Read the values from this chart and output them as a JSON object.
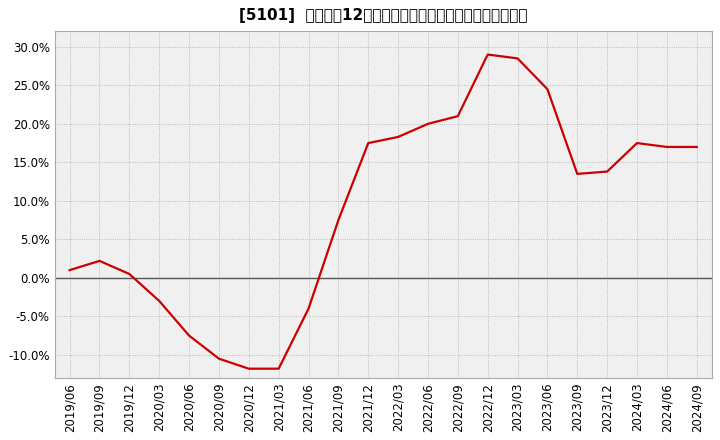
{
  "title": "[5101]  売上高の12か月移動合計の対前年同期増減率の推移",
  "line_color": "#cc0000",
  "background_color": "#ffffff",
  "plot_bg_color": "#f0f0f0",
  "grid_color": "#aaaaaa",
  "zero_line_color": "#555555",
  "ylim": [
    -0.13,
    0.32
  ],
  "yticks": [
    -0.1,
    -0.05,
    0.0,
    0.05,
    0.1,
    0.15,
    0.2,
    0.25,
    0.3
  ],
  "dates": [
    "2019/06",
    "2019/09",
    "2019/12",
    "2020/03",
    "2020/06",
    "2020/09",
    "2020/12",
    "2021/03",
    "2021/06",
    "2021/09",
    "2021/12",
    "2022/03",
    "2022/06",
    "2022/09",
    "2022/12",
    "2023/03",
    "2023/06",
    "2023/09",
    "2023/12",
    "2024/03",
    "2024/06",
    "2024/09"
  ],
  "values": [
    0.01,
    0.022,
    0.005,
    -0.03,
    -0.075,
    -0.105,
    -0.118,
    -0.118,
    -0.04,
    0.075,
    0.175,
    0.183,
    0.2,
    0.21,
    0.29,
    0.285,
    0.245,
    0.135,
    0.138,
    0.175,
    0.17,
    0.17
  ],
  "title_fontsize": 11,
  "tick_fontsize": 8.5,
  "line_width": 1.6
}
